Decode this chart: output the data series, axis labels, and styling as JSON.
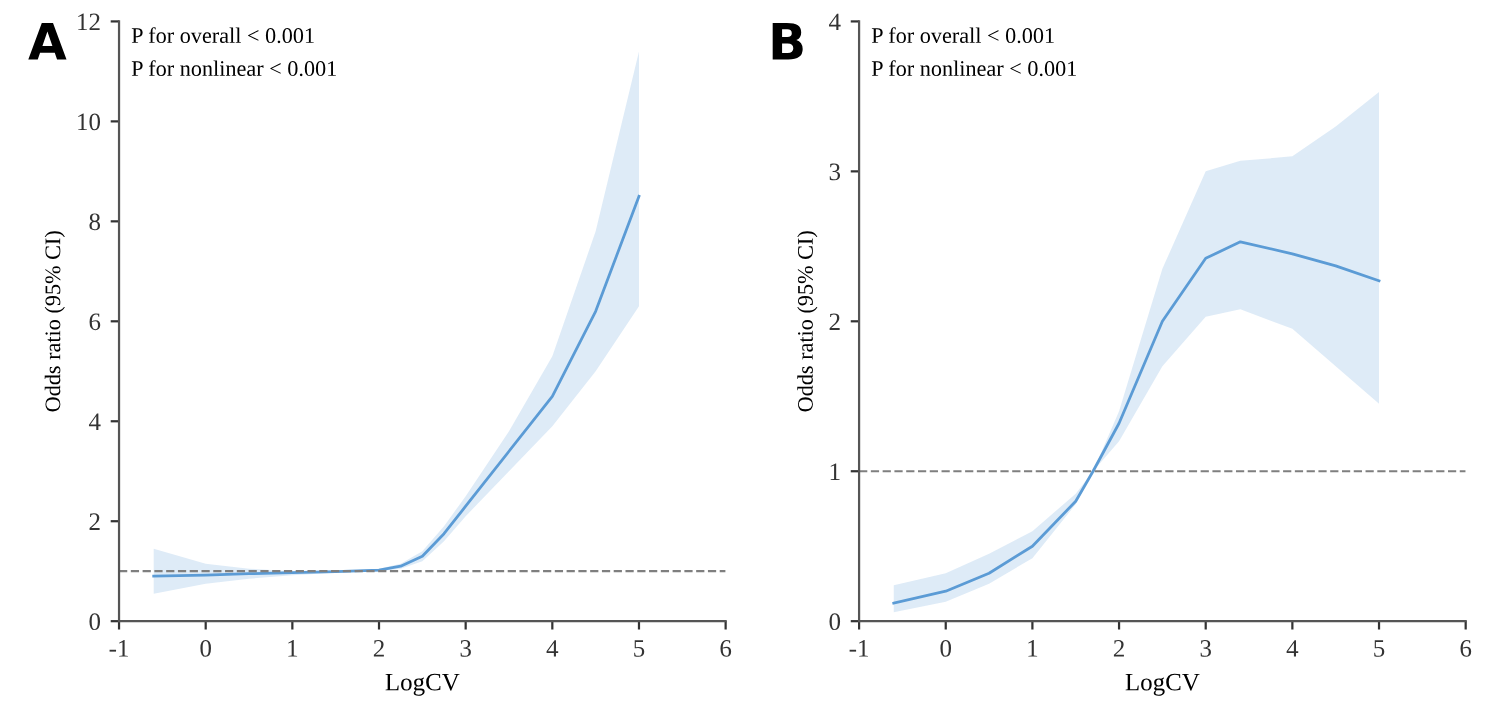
{
  "chart_data": [
    {
      "type": "line",
      "title": "A",
      "xlabel": "LogCV",
      "ylabel": "Odds ratio (95% CI)",
      "annotations": [
        "P for overall < 0.001",
        "P for nonlinear < 0.001"
      ],
      "xlim": [
        -1,
        6
      ],
      "xticks": [
        -1,
        0,
        1,
        2,
        3,
        4,
        5,
        6
      ],
      "ylim": [
        0,
        12
      ],
      "yticks": [
        0,
        2,
        4,
        6,
        8,
        10,
        12
      ],
      "grid": false,
      "line_style": "solid",
      "ref_lines": [
        {
          "axis": "y",
          "value": 1,
          "color": "#7f7f7f",
          "line_style": "dashed"
        }
      ],
      "series": [
        {
          "color": "#5b9bd5",
          "x": [
            -0.6,
            0,
            0.5,
            1,
            1.5,
            2,
            2.25,
            2.5,
            2.75,
            3,
            3.5,
            4,
            4.5,
            5
          ],
          "values": [
            0.9,
            0.92,
            0.95,
            0.97,
            0.99,
            1.02,
            1.1,
            1.3,
            1.75,
            2.3,
            3.4,
            4.5,
            6.2,
            8.5
          ],
          "lower": [
            0.55,
            0.75,
            0.85,
            0.92,
            0.97,
            1.0,
            1.05,
            1.2,
            1.6,
            2.1,
            3.0,
            3.9,
            5.0,
            6.3
          ],
          "upper": [
            1.45,
            1.15,
            1.05,
            1.0,
            1.0,
            1.05,
            1.15,
            1.4,
            1.9,
            2.5,
            3.8,
            5.3,
            7.8,
            11.4
          ]
        }
      ]
    },
    {
      "type": "line",
      "title": "B",
      "xlabel": "LogCV",
      "ylabel": "Odds ratio (95% CI)",
      "annotations": [
        "P for overall < 0.001",
        "P for nonlinear < 0.001"
      ],
      "xlim": [
        -1,
        6
      ],
      "xticks": [
        -1,
        0,
        1,
        2,
        3,
        4,
        5,
        6
      ],
      "ylim": [
        0,
        4
      ],
      "yticks": [
        0,
        1,
        2,
        3,
        4
      ],
      "grid": false,
      "line_style": "solid",
      "ref_lines": [
        {
          "axis": "y",
          "value": 1,
          "color": "#7f7f7f",
          "line_style": "dashed"
        }
      ],
      "series": [
        {
          "color": "#5b9bd5",
          "x": [
            -0.6,
            0,
            0.5,
            1,
            1.5,
            1.7,
            2,
            2.5,
            3,
            3.4,
            4,
            4.5,
            5
          ],
          "values": [
            0.12,
            0.2,
            0.32,
            0.5,
            0.8,
            1.0,
            1.32,
            2.0,
            2.42,
            2.53,
            2.45,
            2.37,
            2.27
          ],
          "lower": [
            0.06,
            0.13,
            0.25,
            0.42,
            0.78,
            1.0,
            1.2,
            1.7,
            2.03,
            2.08,
            1.95,
            1.7,
            1.45
          ],
          "upper": [
            0.24,
            0.32,
            0.45,
            0.6,
            0.85,
            1.0,
            1.4,
            2.35,
            3.0,
            3.07,
            3.1,
            3.3,
            3.53
          ]
        }
      ]
    }
  ]
}
